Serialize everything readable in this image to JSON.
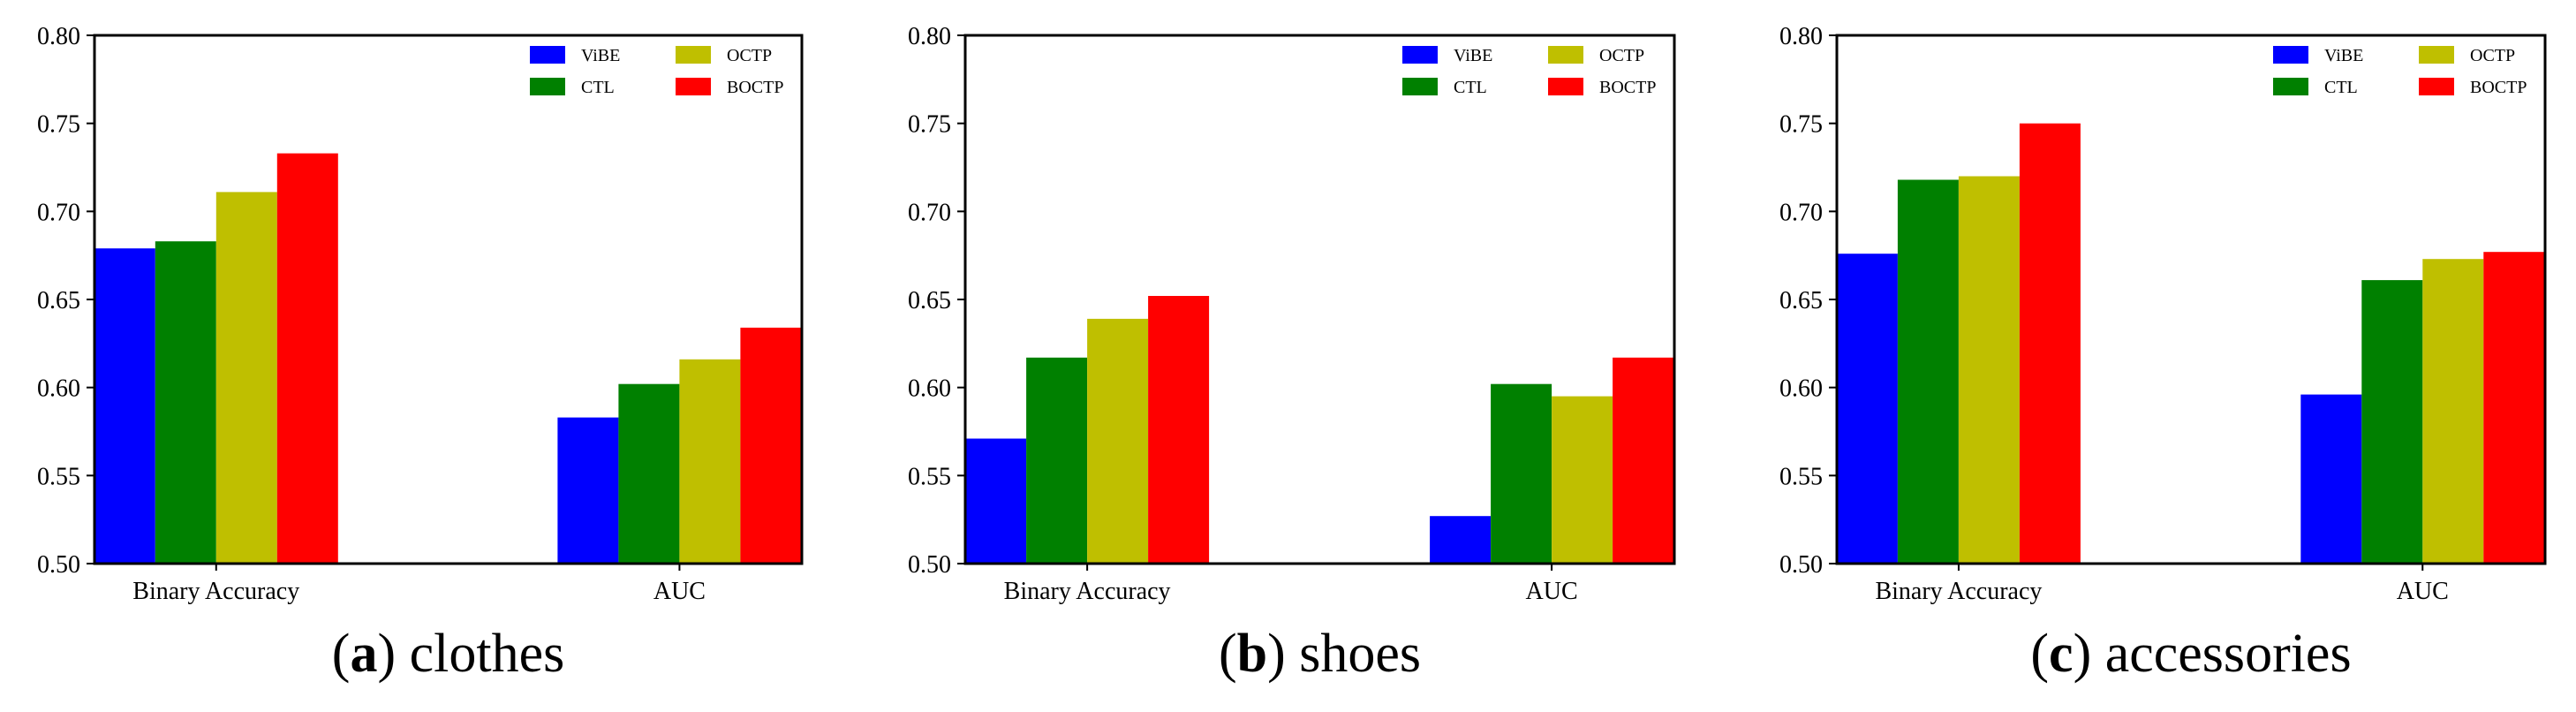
{
  "colors": {
    "ViBE": "#0000ff",
    "CTL": "#008000",
    "OCTP": "#bfbf00",
    "BOCTP": "#ff0000",
    "axis": "#000000",
    "background": "#ffffff"
  },
  "chart_data": [
    {
      "type": "bar",
      "caption_letter": "a",
      "caption_text": "clothes",
      "categories": [
        "Binary Accuracy",
        "AUC"
      ],
      "series": [
        {
          "name": "ViBE",
          "values": [
            0.679,
            0.583
          ]
        },
        {
          "name": "CTL",
          "values": [
            0.683,
            0.602
          ]
        },
        {
          "name": "OCTP",
          "values": [
            0.711,
            0.616
          ]
        },
        {
          "name": "BOCTP",
          "values": [
            0.733,
            0.634
          ]
        }
      ],
      "ylim": [
        0.5,
        0.8
      ],
      "yticks": [
        "0.50",
        "0.55",
        "0.60",
        "0.65",
        "0.70",
        "0.75",
        "0.80"
      ],
      "legend_position": "top-right",
      "grid": false
    },
    {
      "type": "bar",
      "caption_letter": "b",
      "caption_text": "shoes",
      "categories": [
        "Binary Accuracy",
        "AUC"
      ],
      "series": [
        {
          "name": "ViBE",
          "values": [
            0.571,
            0.527
          ]
        },
        {
          "name": "CTL",
          "values": [
            0.617,
            0.602
          ]
        },
        {
          "name": "OCTP",
          "values": [
            0.639,
            0.595
          ]
        },
        {
          "name": "BOCTP",
          "values": [
            0.652,
            0.617
          ]
        }
      ],
      "ylim": [
        0.5,
        0.8
      ],
      "yticks": [
        "0.50",
        "0.55",
        "0.60",
        "0.65",
        "0.70",
        "0.75",
        "0.80"
      ],
      "legend_position": "top-right",
      "grid": false
    },
    {
      "type": "bar",
      "caption_letter": "c",
      "caption_text": "accessories",
      "categories": [
        "Binary Accuracy",
        "AUC"
      ],
      "series": [
        {
          "name": "ViBE",
          "values": [
            0.676,
            0.596
          ]
        },
        {
          "name": "CTL",
          "values": [
            0.718,
            0.661
          ]
        },
        {
          "name": "OCTP",
          "values": [
            0.72,
            0.673
          ]
        },
        {
          "name": "BOCTP",
          "values": [
            0.75,
            0.677
          ]
        }
      ],
      "ylim": [
        0.5,
        0.8
      ],
      "yticks": [
        "0.50",
        "0.55",
        "0.60",
        "0.65",
        "0.70",
        "0.75",
        "0.80"
      ],
      "legend_position": "top-right",
      "grid": false
    }
  ]
}
